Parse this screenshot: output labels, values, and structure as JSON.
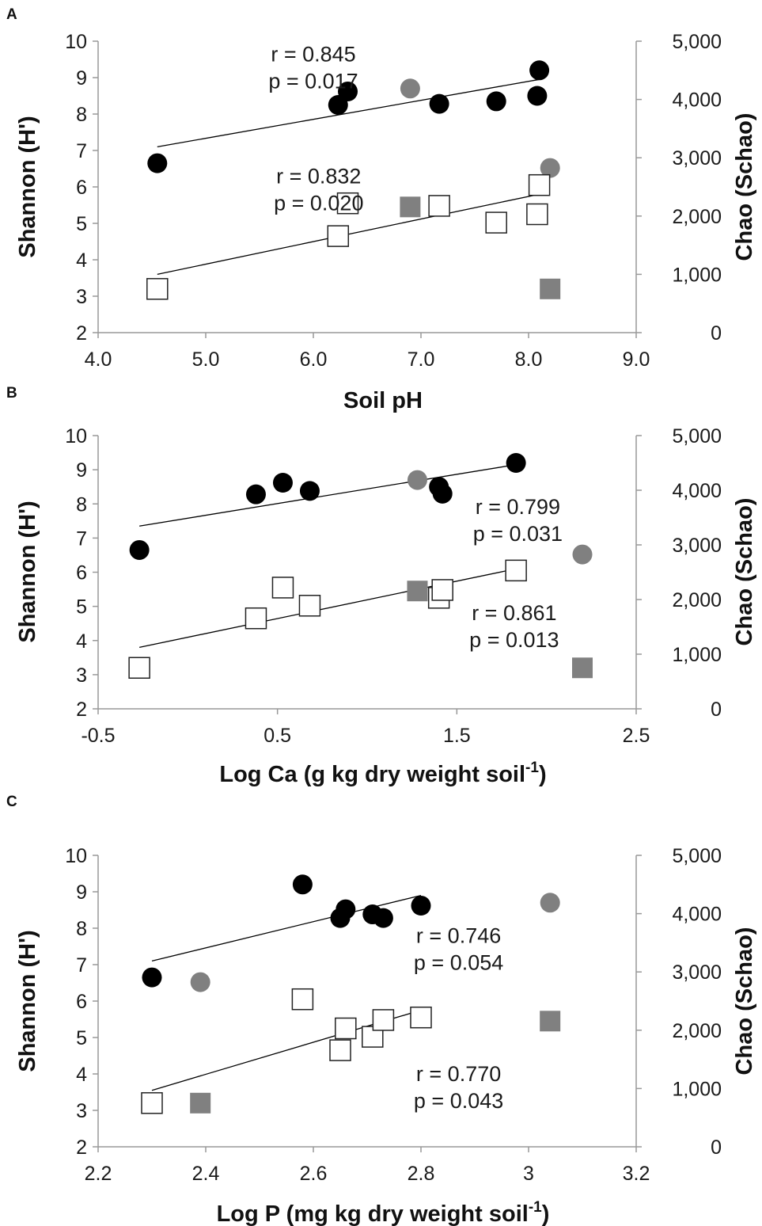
{
  "chart_data": [
    {
      "panel": "A",
      "type": "scatter",
      "xlabel": "Soil pH",
      "ylabel_left": "Shannon (H')",
      "ylabel_right": "Chao (Schao)",
      "xlim": [
        4.0,
        9.0
      ],
      "ylim_left": [
        2,
        10
      ],
      "ylim_right": [
        0,
        5000
      ],
      "x_ticks": [
        "4.0",
        "5.0",
        "6.0",
        "7.0",
        "8.0",
        "9.0"
      ],
      "y_left_ticks": [
        "2",
        "3",
        "4",
        "5",
        "6",
        "7",
        "8",
        "9",
        "10"
      ],
      "y_right_ticks": [
        "0",
        "1,000",
        "2,000",
        "3,000",
        "4,000",
        "5,000"
      ],
      "series": [
        {
          "axis": "left",
          "marker": "circle",
          "color": "#000000",
          "points": [
            [
              4.55,
              6.65
            ],
            [
              6.23,
              8.25
            ],
            [
              6.32,
              8.62
            ],
            [
              7.17,
              8.28
            ],
            [
              7.7,
              8.35
            ],
            [
              8.08,
              8.5
            ],
            [
              8.1,
              9.2
            ]
          ]
        },
        {
          "axis": "left",
          "marker": "circle",
          "color": "#808080",
          "points": [
            [
              6.9,
              8.7
            ],
            [
              8.2,
              6.52
            ]
          ]
        },
        {
          "axis": "left",
          "marker": "square-open",
          "color": "#ffffff",
          "points": [
            [
              4.55,
              3.2
            ],
            [
              6.23,
              4.65
            ],
            [
              6.32,
              5.55
            ],
            [
              7.17,
              5.48
            ],
            [
              7.7,
              5.02
            ],
            [
              8.08,
              5.25
            ],
            [
              8.1,
              6.05
            ]
          ]
        },
        {
          "axis": "left",
          "marker": "square",
          "color": "#808080",
          "points": [
            [
              6.9,
              5.45
            ],
            [
              8.2,
              3.2
            ]
          ]
        }
      ],
      "trendlines": [
        {
          "axis": "left",
          "from": [
            4.55,
            7.1
          ],
          "to": [
            8.1,
            8.95
          ]
        },
        {
          "axis": "left",
          "from": [
            4.55,
            3.6
          ],
          "to": [
            8.1,
            5.8
          ]
        }
      ],
      "annotations": [
        {
          "r": "r = 0.845",
          "p": "p = 0.017",
          "at": [
            6.0,
            9.45
          ]
        },
        {
          "r": "r = 0.832",
          "p": "p = 0.020",
          "at": [
            6.05,
            6.1
          ]
        }
      ]
    },
    {
      "panel": "B",
      "type": "scatter",
      "xlabel": "Log Ca (g kg dry weight soil",
      "xlabel_sup": "-1",
      "xlabel_tail": ")",
      "ylabel_left": "Shannon (H')",
      "ylabel_right": "Chao (Schao)",
      "xlim": [
        -0.5,
        2.5
      ],
      "ylim_left": [
        2,
        10
      ],
      "ylim_right": [
        0,
        5000
      ],
      "x_ticks": [
        "-0.5",
        "0.5",
        "1.5",
        "2.5"
      ],
      "y_left_ticks": [
        "2",
        "3",
        "4",
        "5",
        "6",
        "7",
        "8",
        "9",
        "10"
      ],
      "y_right_ticks": [
        "0",
        "1,000",
        "2,000",
        "3,000",
        "4,000",
        "5,000"
      ],
      "series": [
        {
          "axis": "left",
          "marker": "circle",
          "color": "#000000",
          "points": [
            [
              -0.27,
              6.65
            ],
            [
              0.38,
              8.28
            ],
            [
              0.53,
              8.62
            ],
            [
              0.68,
              8.38
            ],
            [
              1.4,
              8.5
            ],
            [
              1.42,
              8.3
            ],
            [
              1.83,
              9.2
            ]
          ]
        },
        {
          "axis": "left",
          "marker": "circle",
          "color": "#808080",
          "points": [
            [
              1.28,
              8.7
            ],
            [
              2.2,
              6.52
            ]
          ]
        },
        {
          "axis": "left",
          "marker": "square-open",
          "color": "#ffffff",
          "points": [
            [
              -0.27,
              3.2
            ],
            [
              0.38,
              4.65
            ],
            [
              0.53,
              5.55
            ],
            [
              0.68,
              5.02
            ],
            [
              1.4,
              5.25
            ],
            [
              1.42,
              5.48
            ],
            [
              1.83,
              6.05
            ]
          ]
        },
        {
          "axis": "left",
          "marker": "square",
          "color": "#808080",
          "points": [
            [
              1.28,
              5.45
            ],
            [
              2.2,
              3.2
            ]
          ]
        }
      ],
      "trendlines": [
        {
          "axis": "left",
          "from": [
            -0.27,
            7.35
          ],
          "to": [
            1.83,
            9.15
          ]
        },
        {
          "axis": "left",
          "from": [
            -0.27,
            3.8
          ],
          "to": [
            1.83,
            6.1
          ]
        }
      ],
      "annotations": [
        {
          "r": "r = 0.799",
          "p": "p = 0.031",
          "at": [
            1.84,
            7.7
          ]
        },
        {
          "r": "r = 0.861",
          "p": "p = 0.013",
          "at": [
            1.82,
            4.6
          ]
        }
      ]
    },
    {
      "panel": "C",
      "type": "scatter",
      "xlabel": "Log P (mg kg dry weight soil",
      "xlabel_sup": "-1",
      "xlabel_tail": ")",
      "ylabel_left": "Shannon (H')",
      "ylabel_right": "Chao (Schao)",
      "xlim": [
        2.2,
        3.2
      ],
      "ylim_left": [
        2,
        10
      ],
      "ylim_right": [
        0,
        5000
      ],
      "x_ticks": [
        "2.2",
        "2.4",
        "2.6",
        "2.8",
        "3",
        "3.2"
      ],
      "y_left_ticks": [
        "2",
        "3",
        "4",
        "5",
        "6",
        "7",
        "8",
        "9",
        "10"
      ],
      "y_right_ticks": [
        "0",
        "1,000",
        "2,000",
        "3,000",
        "4,000",
        "5,000"
      ],
      "series": [
        {
          "axis": "left",
          "marker": "circle",
          "color": "#000000",
          "points": [
            [
              2.3,
              6.65
            ],
            [
              2.58,
              9.2
            ],
            [
              2.65,
              8.28
            ],
            [
              2.66,
              8.52
            ],
            [
              2.71,
              8.38
            ],
            [
              2.73,
              8.28
            ],
            [
              2.8,
              8.62
            ]
          ]
        },
        {
          "axis": "left",
          "marker": "circle",
          "color": "#808080",
          "points": [
            [
              2.39,
              6.52
            ],
            [
              3.04,
              8.7
            ]
          ]
        },
        {
          "axis": "left",
          "marker": "square-open",
          "color": "#ffffff",
          "points": [
            [
              2.3,
              3.2
            ],
            [
              2.58,
              6.05
            ],
            [
              2.65,
              4.65
            ],
            [
              2.66,
              5.25
            ],
            [
              2.71,
              5.02
            ],
            [
              2.73,
              5.48
            ],
            [
              2.8,
              5.55
            ]
          ]
        },
        {
          "axis": "left",
          "marker": "square",
          "color": "#808080",
          "points": [
            [
              2.39,
              3.2
            ],
            [
              3.04,
              5.45
            ]
          ]
        }
      ],
      "trendlines": [
        {
          "axis": "left",
          "from": [
            2.3,
            7.1
          ],
          "to": [
            2.8,
            8.9
          ]
        },
        {
          "axis": "left",
          "from": [
            2.3,
            3.55
          ],
          "to": [
            2.8,
            5.75
          ]
        }
      ],
      "annotations": [
        {
          "r": "r = 0.746",
          "p": "p = 0.054",
          "at": [
            2.87,
            7.6
          ]
        },
        {
          "r": "r = 0.770",
          "p": "p = 0.043",
          "at": [
            2.87,
            3.8
          ]
        }
      ]
    }
  ]
}
